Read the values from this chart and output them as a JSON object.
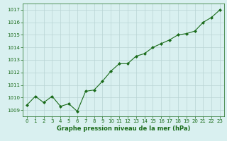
{
  "x": [
    0,
    1,
    2,
    3,
    4,
    5,
    6,
    7,
    8,
    9,
    10,
    11,
    12,
    13,
    14,
    15,
    16,
    17,
    18,
    19,
    20,
    21,
    22,
    23
  ],
  "y": [
    1009.4,
    1010.1,
    1009.6,
    1010.1,
    1009.3,
    1009.5,
    1008.9,
    1010.5,
    1010.6,
    1011.3,
    1012.1,
    1012.7,
    1012.7,
    1013.3,
    1013.5,
    1014.0,
    1014.3,
    1014.6,
    1015.0,
    1015.1,
    1015.3,
    1016.0,
    1016.4,
    1017.0
  ],
  "ylim": [
    1008.5,
    1017.5
  ],
  "yticks": [
    1009,
    1010,
    1011,
    1012,
    1013,
    1014,
    1015,
    1016,
    1017
  ],
  "xticks": [
    0,
    1,
    2,
    3,
    4,
    5,
    6,
    7,
    8,
    9,
    10,
    11,
    12,
    13,
    14,
    15,
    16,
    17,
    18,
    19,
    20,
    21,
    22,
    23
  ],
  "xlabel": "Graphe pression niveau de la mer (hPa)",
  "line_color": "#1a6b1a",
  "marker": "D",
  "marker_size": 2.0,
  "bg_color": "#d9f0f0",
  "grid_color": "#b8d4d4",
  "text_color": "#1a6b1a",
  "figsize": [
    3.2,
    2.0
  ],
  "dpi": 100
}
